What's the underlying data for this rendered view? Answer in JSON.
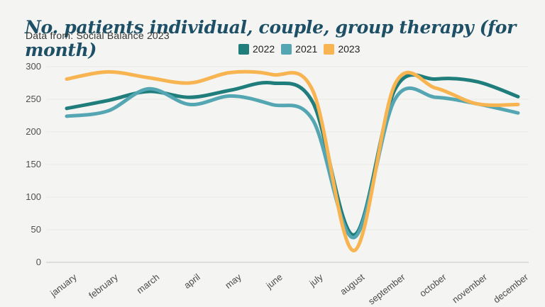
{
  "header": {
    "title": "No. patients individual, couple, group therapy (for month)",
    "subtitle": "Data from: Social Balance 2023"
  },
  "colors": {
    "background": "#f4f4f2",
    "title_text": "#1d4f66",
    "gridline": "#e8e8e4",
    "axis_line": "#c6c6c2",
    "tick_text": "#4a4a4a"
  },
  "chart_data": {
    "type": "line",
    "title": "No. patients individual, couple, group therapy (for month)",
    "subtitle": "Data from: Social Balance 2023",
    "categories": [
      "january",
      "february",
      "march",
      "april",
      "may",
      "june",
      "july",
      "august",
      "september",
      "october",
      "november",
      "december"
    ],
    "series": [
      {
        "name": "2022",
        "color": "#1f7e7c",
        "values": [
          236,
          248,
          262,
          253,
          264,
          275,
          245,
          42,
          265,
          281,
          277,
          254
        ]
      },
      {
        "name": "2021",
        "color": "#54a6b2",
        "values": [
          224,
          232,
          266,
          242,
          255,
          242,
          218,
          38,
          250,
          253,
          243,
          229
        ]
      },
      {
        "name": "2023",
        "color": "#f8b451",
        "values": [
          281,
          292,
          283,
          275,
          291,
          288,
          263,
          18,
          273,
          267,
          243,
          242
        ]
      }
    ],
    "ylim": [
      0,
      300
    ],
    "yticks": [
      0,
      50,
      100,
      150,
      200,
      250,
      300
    ],
    "xlabel": "",
    "ylabel": "",
    "grid": "horizontal",
    "legend_position": "top-center",
    "smooth": true,
    "line_width": 5
  }
}
